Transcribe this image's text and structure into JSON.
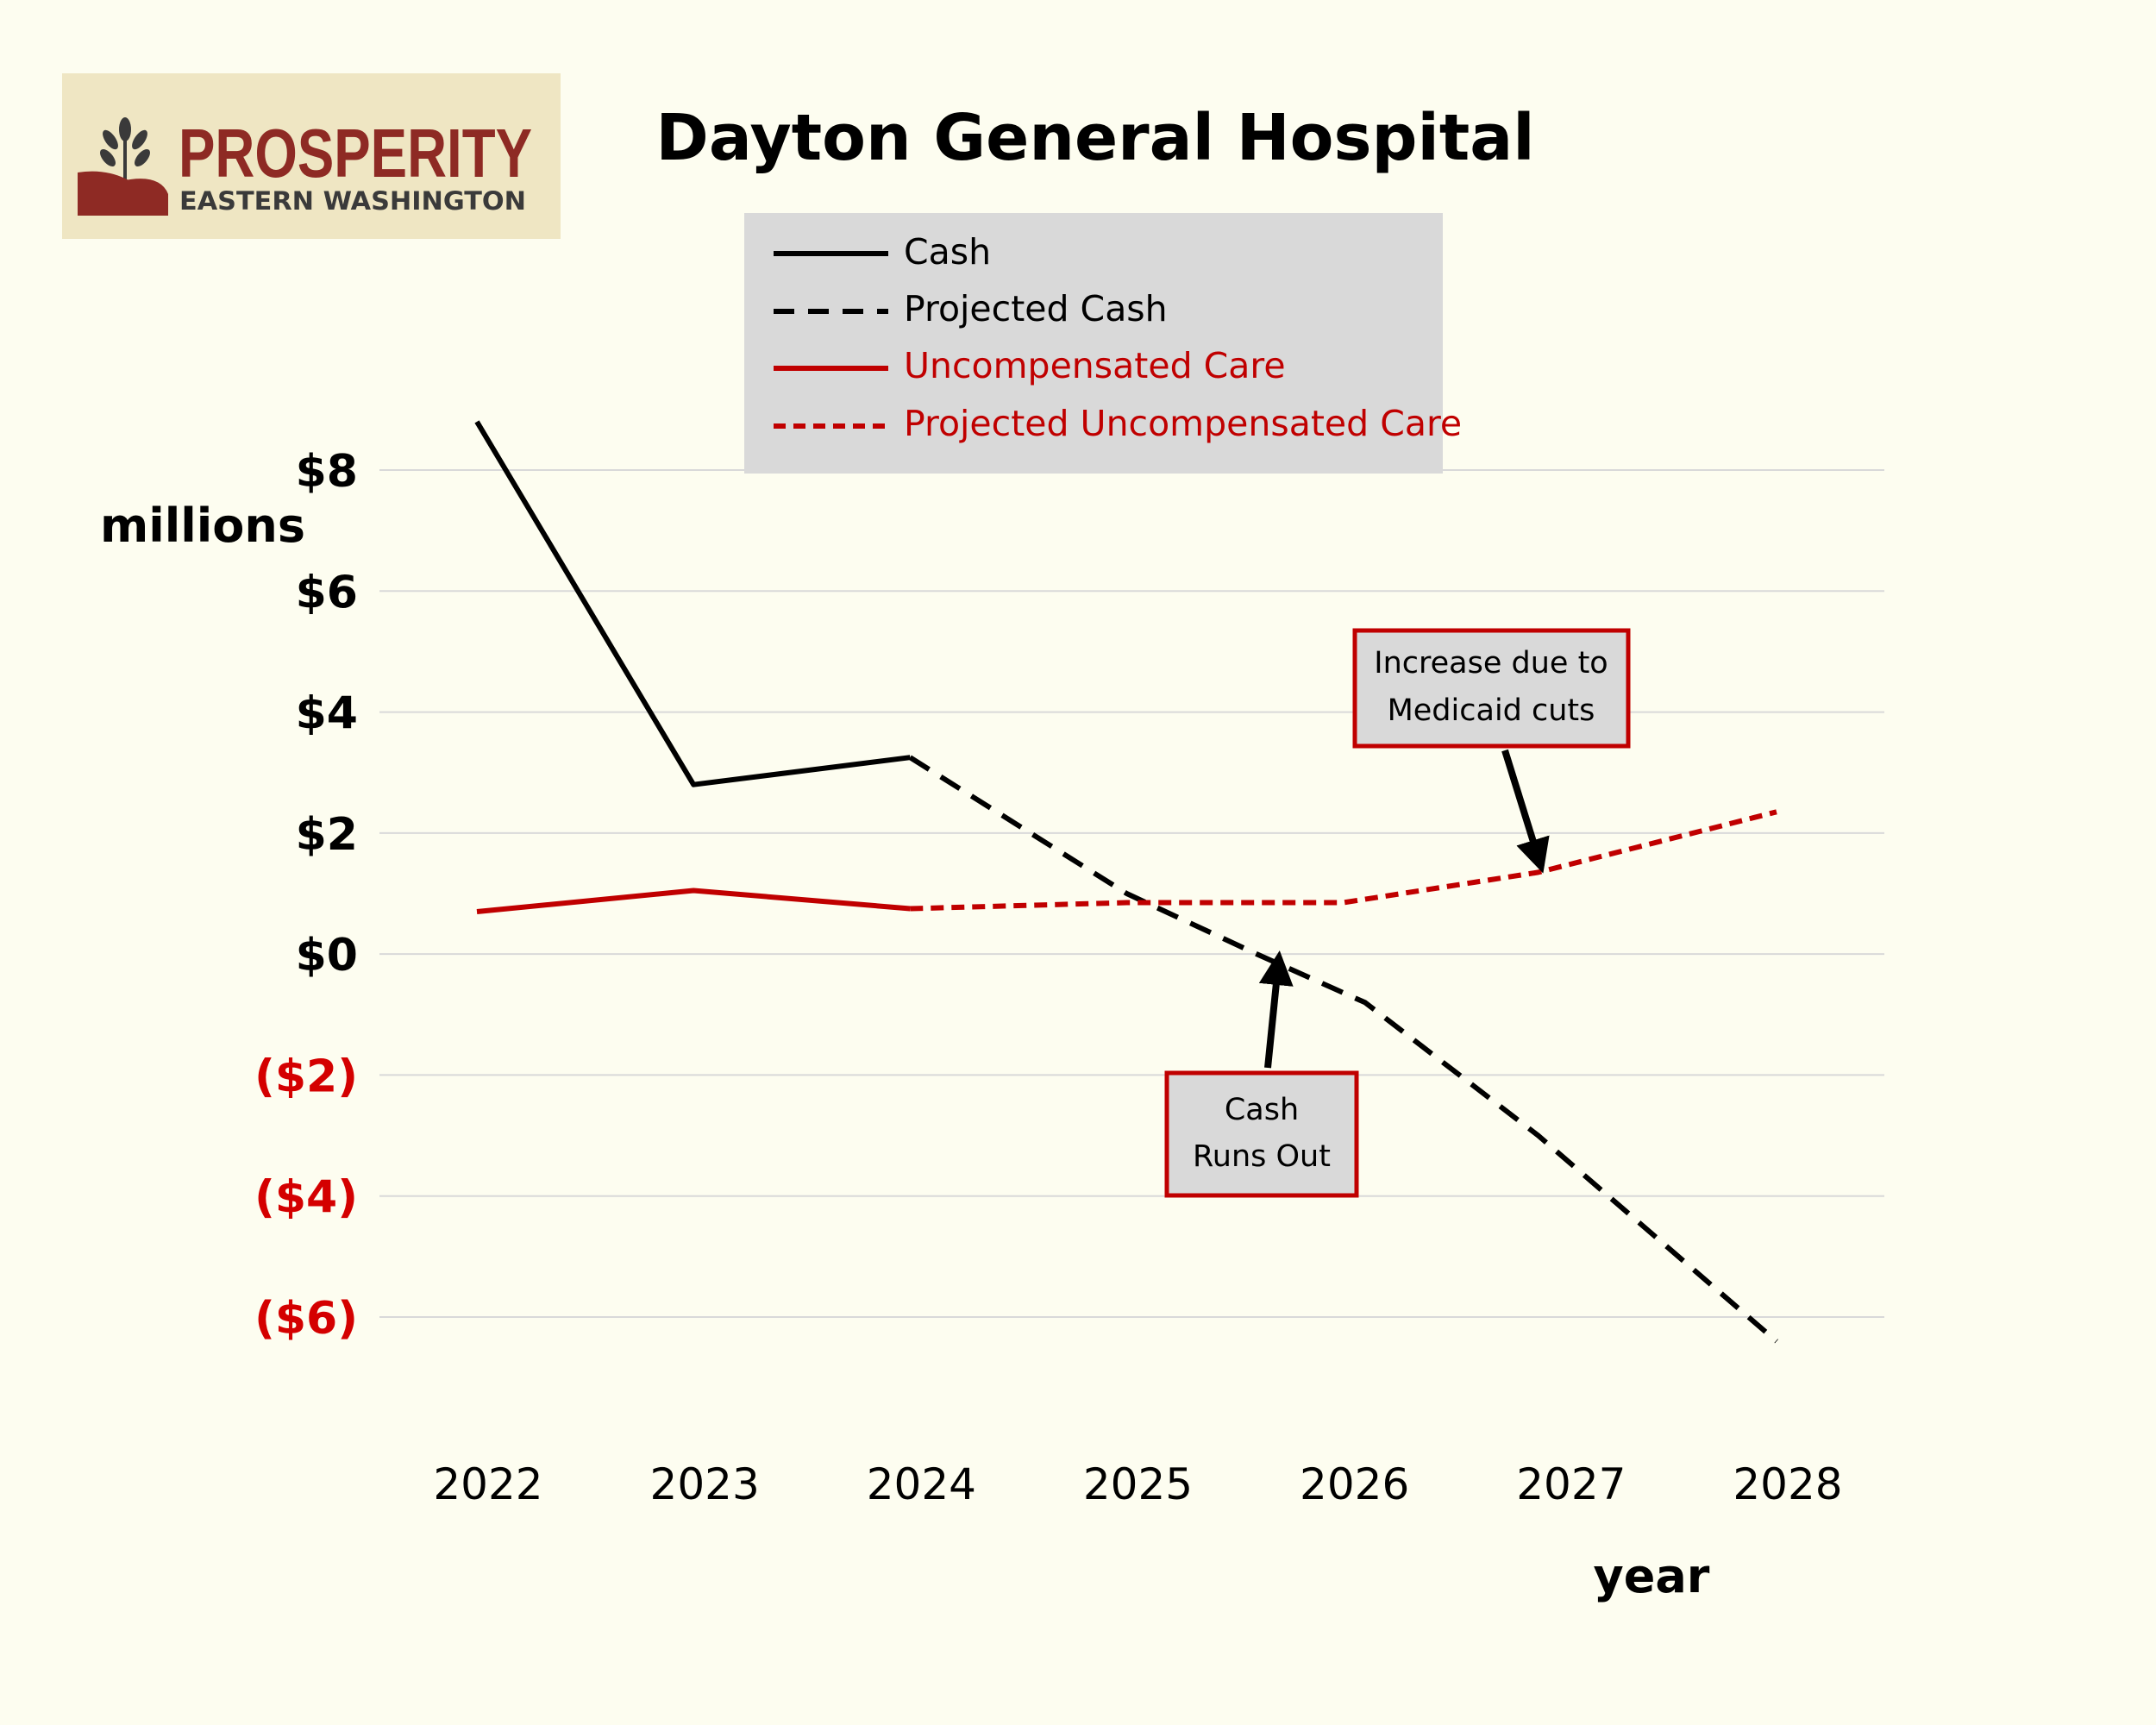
{
  "logo": {
    "title": "PROSPERITY",
    "subtitle": "EASTERN WASHINGTON"
  },
  "colors": {
    "background": "#fdfdf0",
    "logo_bg": "#efe6c3",
    "logo_red": "#8e2a24",
    "black_series": "#000000",
    "red_series": "#c00000",
    "legend_bg": "#d9d9d9",
    "grid": "#d9d9d9",
    "negative_tick": "#d40000",
    "callout_fill": "#d9d9d9",
    "callout_border": "#c00000"
  },
  "chart_data": {
    "type": "line",
    "title": "Dayton General Hospital",
    "ylabel": "millions",
    "xlabel": "year",
    "categories": [
      "2022",
      "2023",
      "2024",
      "2025",
      "2026",
      "2027",
      "2028"
    ],
    "ylim": [
      -6,
      8
    ],
    "yticks": [
      8,
      6,
      4,
      2,
      0,
      -2,
      -4,
      -6
    ],
    "ytick_labels": [
      "$8",
      "$6",
      "$4",
      "$2",
      "$0",
      "($2)",
      "($4)",
      "($6)"
    ],
    "grid": true,
    "legend_position": "top-center",
    "series": [
      {
        "name": "Cash",
        "style": "solid",
        "color": "#000000",
        "x": [
          2022,
          2023,
          2024
        ],
        "values": [
          8.8,
          2.8,
          3.25
        ]
      },
      {
        "name": "Projected Cash",
        "style": "dashed",
        "color": "#000000",
        "x": [
          2024,
          2025,
          2025.6,
          2026.1,
          2026.9,
          2028
        ],
        "values": [
          3.25,
          1.0,
          0.0,
          -0.8,
          -3.0,
          -6.4
        ]
      },
      {
        "name": "Uncompensated Care",
        "style": "solid",
        "color": "#c00000",
        "x": [
          2022,
          2023,
          2024
        ],
        "values": [
          0.7,
          1.05,
          0.75
        ]
      },
      {
        "name": "Projected Uncompensated Care",
        "style": "dotted",
        "color": "#c00000",
        "x": [
          2024,
          2025,
          2026,
          2026.9,
          2028
        ],
        "values": [
          0.75,
          0.85,
          0.85,
          1.35,
          2.35
        ]
      }
    ],
    "annotations": [
      {
        "text_lines": [
          "Increase due to",
          "Medicaid cuts"
        ],
        "points_to": [
          2026.85,
          1.35
        ]
      },
      {
        "text_lines": [
          "Cash",
          "Runs Out"
        ],
        "points_to": [
          2025.6,
          0.0
        ]
      }
    ]
  }
}
